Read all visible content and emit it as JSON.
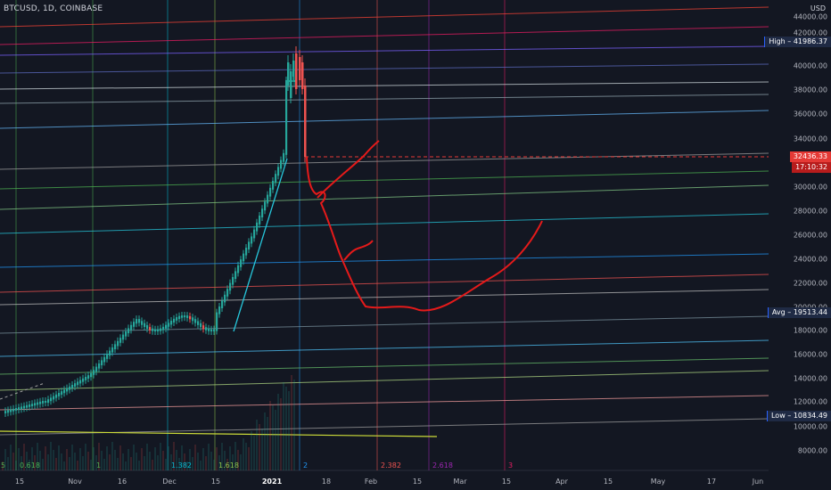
{
  "header": {
    "symbol": "BTCUSD, 1D, COINBASE",
    "currency": "USD"
  },
  "price_axis": {
    "labels": [
      "44000.00",
      "42000.00",
      "40000.00",
      "38000.00",
      "36000.00",
      "34000.00",
      "30000.00",
      "28000.00",
      "26000.00",
      "24000.00",
      "22000.00",
      "20000.00",
      "18000.00",
      "16000.00",
      "14000.00",
      "12000.00",
      "10000.00",
      "8000.00"
    ],
    "high": "High – 41986.37",
    "last_price": "32436.33",
    "countdown": "17:10:32",
    "avg": "Avg – 19513.44",
    "low": "Low – 10834.49"
  },
  "time_axis": {
    "labels": [
      "15",
      "Nov",
      "16",
      "Dec",
      "15",
      "2021",
      "18",
      "Feb",
      "15",
      "Mar",
      "15",
      "Apr",
      "15",
      "May",
      "17",
      "Jun"
    ]
  },
  "fib_time_labels": [
    "0.618",
    "1",
    "1.382",
    "1.618",
    "2",
    "2.382",
    "2.618",
    "3"
  ],
  "fib_time_colors": [
    "#4caf50",
    "#4caf50",
    "#00bcd4",
    "#8bc34a",
    "#2196f3",
    "#ef5350",
    "#9c27b0",
    "#e91e63"
  ],
  "fib_edge_label": "5",
  "colors": {
    "background": "#131722",
    "up": "#26a69a",
    "down": "#ef5350",
    "drawing": "#e51a1a"
  }
}
